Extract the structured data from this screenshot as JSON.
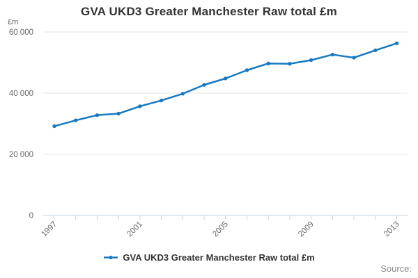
{
  "title": "GVA UKD3 Greater Manchester Raw total £m",
  "axis_unit_label": "£m",
  "legend": {
    "label": "GVA UKD3 Greater Manchester Raw total £m"
  },
  "source_label": "Source:",
  "colors": {
    "line": "#1779c1",
    "grid": "#e6e6e6",
    "axis": "#c0d0e0",
    "tick_text": "#666666",
    "title_text": "#333333",
    "source_text": "#8c8c8c"
  },
  "chart_data": {
    "type": "line",
    "title": "GVA UKD3 Greater Manchester Raw total £m",
    "xlabel": "",
    "ylabel": "£m",
    "categories": [
      1997,
      1998,
      1999,
      2000,
      2001,
      2002,
      2003,
      2004,
      2005,
      2006,
      2007,
      2008,
      2009,
      2010,
      2011,
      2012,
      2013
    ],
    "series": [
      {
        "name": "GVA UKD3 Greater Manchester Raw total £m",
        "color": "#1779c1",
        "values": [
          29200,
          31100,
          32800,
          33300,
          35700,
          37600,
          39800,
          42700,
          44800,
          47500,
          49700,
          49600,
          50800,
          52600,
          51600,
          54000,
          56300
        ]
      }
    ],
    "ylim": [
      0,
      60000
    ],
    "yticks": [
      {
        "value": 0,
        "label": "0"
      },
      {
        "value": 20000,
        "label": "20 000"
      },
      {
        "value": 40000,
        "label": "40 000"
      },
      {
        "value": 60000,
        "label": "60 000"
      }
    ],
    "x_label_every": 4,
    "visible_x_tick_labels": [
      "1997",
      "2001",
      "2005",
      "2009",
      "2013"
    ],
    "grid": true,
    "legend_position": "bottom"
  }
}
